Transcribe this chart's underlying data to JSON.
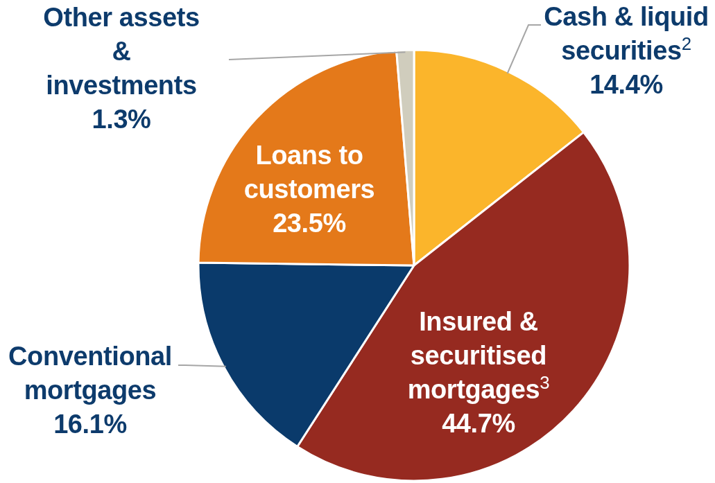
{
  "chart_data": {
    "type": "pie",
    "categories": [
      "Cash & liquid securities$^{2}$",
      "Insured & securitised mortgages$^{3}$",
      "Conventional mortgages",
      "Loans to customers",
      "Other assets & investments"
    ],
    "values": [
      14.4,
      44.7,
      16.1,
      23.5,
      1.3
    ],
    "value_labels": [
      "14.4%",
      "44.7%",
      "16.1%",
      "23.5%",
      "1.3%"
    ],
    "colors": [
      "#fbb52b",
      "#962a20",
      "#0a3a6b",
      "#e4791a",
      "#d0cdbd"
    ]
  }
}
